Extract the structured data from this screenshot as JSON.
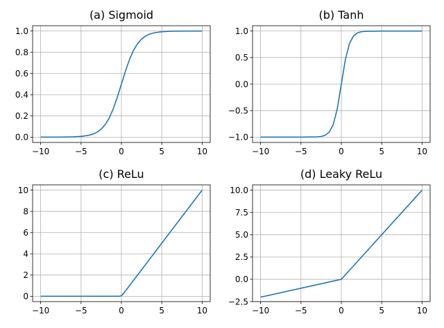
{
  "colors": {
    "line": "#1f77b4",
    "grid": "#b0b0b0"
  },
  "chart_data": [
    {
      "type": "line",
      "title": "(a) Sigmoid",
      "xlim": [
        -11,
        11
      ],
      "ylim": [
        -0.05,
        1.05
      ],
      "xticks": [
        -10,
        -5,
        0,
        5,
        10
      ],
      "xtick_labels": [
        "−10",
        "−5",
        "0",
        "5",
        "10"
      ],
      "yticks": [
        0.0,
        0.2,
        0.4,
        0.6,
        0.8,
        1.0
      ],
      "ytick_labels": [
        "0.0",
        "0.2",
        "0.4",
        "0.6",
        "0.8",
        "1.0"
      ],
      "grid": true,
      "series": [
        {
          "x": [
            -10,
            -9,
            -8,
            -7,
            -6,
            -5,
            -4,
            -3.5,
            -3,
            -2.5,
            -2,
            -1.5,
            -1,
            -0.5,
            0,
            0.5,
            1,
            1.5,
            2,
            2.5,
            3,
            3.5,
            4,
            5,
            6,
            7,
            8,
            9,
            10
          ],
          "y": [
            0.0,
            0.0001,
            0.0003,
            0.0009,
            0.0025,
            0.0067,
            0.018,
            0.029,
            0.047,
            0.076,
            0.119,
            0.182,
            0.269,
            0.378,
            0.5,
            0.622,
            0.731,
            0.818,
            0.881,
            0.924,
            0.953,
            0.971,
            0.982,
            0.993,
            0.998,
            0.999,
            1.0,
            1.0,
            1.0
          ]
        }
      ]
    },
    {
      "type": "line",
      "title": "(b) Tanh",
      "xlim": [
        -11,
        11
      ],
      "ylim": [
        -1.1,
        1.1
      ],
      "xticks": [
        -10,
        -5,
        0,
        5,
        10
      ],
      "xtick_labels": [
        "−10",
        "−5",
        "0",
        "5",
        "10"
      ],
      "yticks": [
        -1.0,
        -0.5,
        0.0,
        0.5,
        1.0
      ],
      "ytick_labels": [
        "−1.0",
        "−0.5",
        "0.0",
        "0.5",
        "1.0"
      ],
      "grid": true,
      "series": [
        {
          "x": [
            -10,
            -5,
            -3,
            -2.5,
            -2,
            -1.5,
            -1,
            -0.5,
            0,
            0.5,
            1,
            1.5,
            2,
            2.5,
            3,
            5,
            10
          ],
          "y": [
            -1.0,
            -1.0,
            -0.995,
            -0.987,
            -0.964,
            -0.905,
            -0.762,
            -0.462,
            0.0,
            0.462,
            0.762,
            0.905,
            0.964,
            0.987,
            0.995,
            1.0,
            1.0
          ]
        }
      ]
    },
    {
      "type": "line",
      "title": "(c) ReLu",
      "xlim": [
        -11,
        11
      ],
      "ylim": [
        -0.5,
        10.5
      ],
      "xticks": [
        -10,
        -5,
        0,
        5,
        10
      ],
      "xtick_labels": [
        "−10",
        "−5",
        "0",
        "5",
        "10"
      ],
      "yticks": [
        0,
        2,
        4,
        6,
        8,
        10
      ],
      "ytick_labels": [
        "0",
        "2",
        "4",
        "6",
        "8",
        "10"
      ],
      "grid": true,
      "series": [
        {
          "x": [
            -10,
            -0.3,
            0,
            0.3,
            10
          ],
          "y": [
            0,
            0,
            0.05,
            0.3,
            10
          ]
        }
      ]
    },
    {
      "type": "line",
      "title": "(d) Leaky ReLu",
      "xlim": [
        -11,
        11
      ],
      "ylim": [
        -2.5,
        10.6
      ],
      "xticks": [
        -10,
        -5,
        0,
        5,
        10
      ],
      "xtick_labels": [
        "−10",
        "−5",
        "0",
        "5",
        "10"
      ],
      "yticks": [
        -2.5,
        0.0,
        2.5,
        5.0,
        7.5,
        10.0
      ],
      "ytick_labels": [
        "−2.5",
        "0.0",
        "2.5",
        "5.0",
        "7.5",
        "10.0"
      ],
      "grid": true,
      "series": [
        {
          "x": [
            -10,
            -0.3,
            0,
            0.3,
            10
          ],
          "y": [
            -2.0,
            -0.06,
            0.0,
            0.3,
            10.0
          ]
        }
      ]
    }
  ]
}
